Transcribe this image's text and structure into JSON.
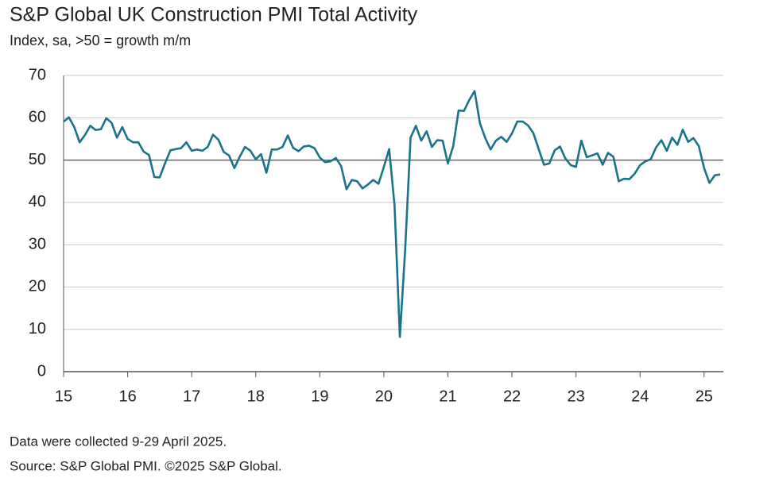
{
  "chart_data": {
    "type": "line",
    "title": "S&P Global UK Construction PMI Total Activity",
    "subtitle": "Index, sa, >50 = growth m/m",
    "notes": [
      "Data were collected 9-29 April 2025.",
      "Source: S&P Global PMI. ©2025 S&P Global."
    ],
    "x": [
      15,
      15.083,
      15.167,
      15.25,
      15.333,
      15.417,
      15.5,
      15.583,
      15.667,
      15.75,
      15.833,
      15.917,
      16,
      16.083,
      16.167,
      16.25,
      16.333,
      16.417,
      16.5,
      16.583,
      16.667,
      16.75,
      16.833,
      16.917,
      17,
      17.083,
      17.167,
      17.25,
      17.333,
      17.417,
      17.5,
      17.583,
      17.667,
      17.75,
      17.833,
      17.917,
      18,
      18.083,
      18.167,
      18.25,
      18.333,
      18.417,
      18.5,
      18.583,
      18.667,
      18.75,
      18.833,
      18.917,
      19,
      19.083,
      19.167,
      19.25,
      19.333,
      19.417,
      19.5,
      19.583,
      19.667,
      19.75,
      19.833,
      19.917,
      20,
      20.083,
      20.167,
      20.25,
      20.333,
      20.417,
      20.5,
      20.583,
      20.667,
      20.75,
      20.833,
      20.917,
      21,
      21.083,
      21.167,
      21.25,
      21.333,
      21.417,
      21.5,
      21.583,
      21.667,
      21.75,
      21.833,
      21.917,
      22,
      22.083,
      22.167,
      22.25,
      22.333,
      22.417,
      22.5,
      22.583,
      22.667,
      22.75,
      22.833,
      22.917,
      23,
      23.083,
      23.167,
      23.25,
      23.333,
      23.417,
      23.5,
      23.583,
      23.667,
      23.75,
      23.833,
      23.917,
      24,
      24.083,
      24.167,
      24.25,
      24.333,
      24.417,
      24.5,
      24.583,
      24.667,
      24.75,
      24.833,
      24.917,
      25,
      25.083,
      25.167,
      25.25
    ],
    "series": [
      {
        "name": "Total Activity",
        "color": "#1b7388",
        "values": [
          59.1,
          60.1,
          57.8,
          54.2,
          55.9,
          58.1,
          57.1,
          57.3,
          59.9,
          58.8,
          55.3,
          57.8,
          55.0,
          54.2,
          54.2,
          52.0,
          51.2,
          46.0,
          45.9,
          49.2,
          52.3,
          52.6,
          52.8,
          54.2,
          52.2,
          52.5,
          52.2,
          53.1,
          56.0,
          54.8,
          51.9,
          51.1,
          48.1,
          50.8,
          53.1,
          52.2,
          50.2,
          51.4,
          47.0,
          52.5,
          52.5,
          53.1,
          55.8,
          52.9,
          52.1,
          53.2,
          53.4,
          52.8,
          50.6,
          49.5,
          49.7,
          50.5,
          48.6,
          43.1,
          45.3,
          45.0,
          43.3,
          44.2,
          45.3,
          44.4,
          48.4,
          52.6,
          39.3,
          8.2,
          28.9,
          55.3,
          58.1,
          54.6,
          56.8,
          53.1,
          54.7,
          54.6,
          49.2,
          53.3,
          61.7,
          61.6,
          64.2,
          66.3,
          58.7,
          55.2,
          52.5,
          54.6,
          55.5,
          54.3,
          56.3,
          59.1,
          59.1,
          58.2,
          56.4,
          52.6,
          48.9,
          49.2,
          52.3,
          53.2,
          50.4,
          48.8,
          48.4,
          54.6,
          50.7,
          51.1,
          51.6,
          48.9,
          51.7,
          50.8,
          45.0,
          45.6,
          45.5,
          46.8,
          48.8,
          49.7,
          50.2,
          53.0,
          54.7,
          52.2,
          55.3,
          53.6,
          57.2,
          54.3,
          55.2,
          53.3,
          48.1,
          44.6,
          46.4,
          46.6
        ]
      }
    ],
    "xlim": [
      15,
      25.3
    ],
    "xticks": [
      15,
      16,
      17,
      18,
      19,
      20,
      21,
      22,
      23,
      24,
      25
    ],
    "ylim": [
      0,
      70
    ],
    "yticks": [
      0,
      10,
      20,
      30,
      40,
      50,
      60,
      70
    ],
    "reference_line": 50,
    "grid": true
  }
}
